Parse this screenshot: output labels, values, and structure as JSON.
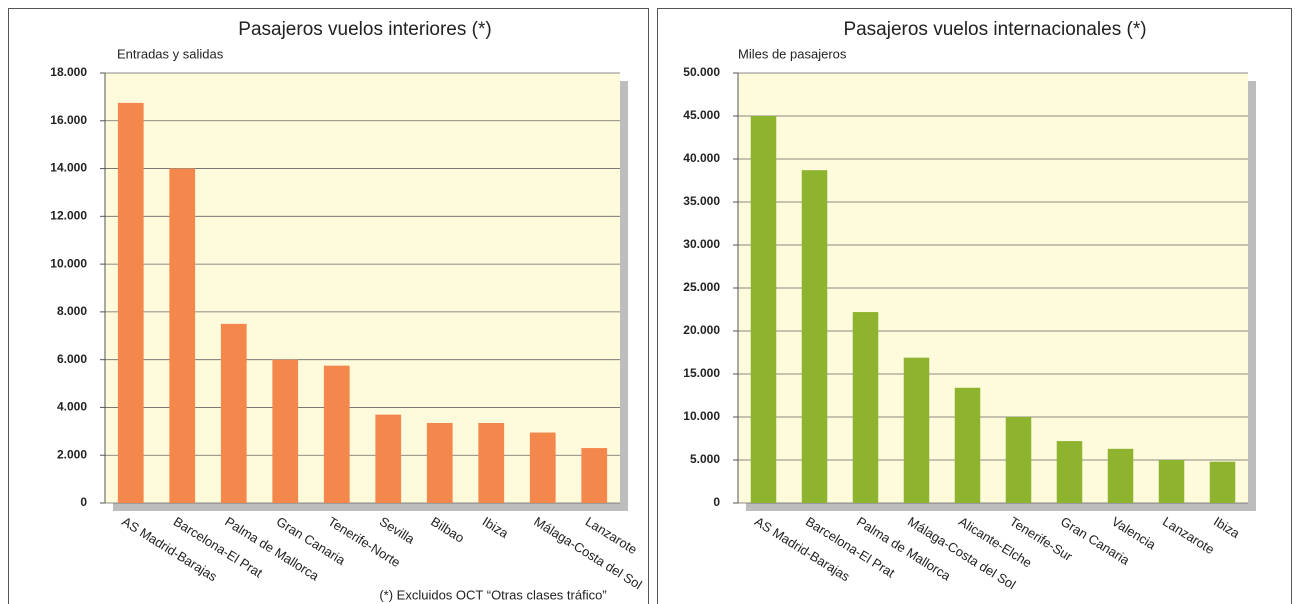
{
  "chart_data": [
    {
      "type": "bar",
      "title": "Pasajeros vuelos interiores (*)",
      "subtitle": "Entradas y salidas",
      "categories": [
        "AS Madrid-Barajas",
        "Barcelona-El Prat",
        "Palma  de Mallorca",
        "Gran Canaria",
        "Tenerife-Norte",
        "Sevilla",
        "Bilbao",
        "Ibiza",
        "Málaga-Costa del Sol",
        "Lanzarote"
      ],
      "values": [
        16750,
        14000,
        7500,
        6000,
        5750,
        3700,
        3350,
        3350,
        2950,
        2300
      ],
      "color": "#f4874b",
      "ylim": [
        0,
        18000
      ],
      "yticks": [
        0,
        {
          "value": 2000,
          "label": "2.000"
        },
        {
          "value": 4000,
          "label": "4.000"
        },
        {
          "value": 6000,
          "label": "6.000"
        },
        {
          "value": 8000,
          "label": "8.000"
        },
        {
          "value": 10000,
          "label": "10.000"
        },
        {
          "value": 12000,
          "label": "12.000"
        },
        {
          "value": 14000,
          "label": "14.000"
        },
        {
          "value": 16000,
          "label": "16.000"
        },
        {
          "value": 18000,
          "label": "18.000"
        }
      ],
      "grid": true
    },
    {
      "type": "bar",
      "title": "Pasajeros vuelos internacionales (*)",
      "subtitle": "Miles de pasajeros",
      "categories": [
        "AS Madrid-Barajas",
        "Barcelona-El Prat",
        "Palma  de Mallorca",
        "Málaga-Costa del Sol",
        "Alicante-Elche",
        "Tenerife-Sur",
        "Gran Canaria",
        "Valencia",
        "Lanzarote",
        "Ibiza"
      ],
      "values": [
        45000,
        38700,
        22200,
        16900,
        13400,
        10000,
        7200,
        6300,
        5000,
        4800
      ],
      "color": "#8db32f",
      "ylim": [
        0,
        50000
      ],
      "yticks": [
        0,
        {
          "value": 5000,
          "label": "5.000"
        },
        {
          "value": 10000,
          "label": "10.000"
        },
        {
          "value": 15000,
          "label": "15.000"
        },
        {
          "value": 20000,
          "label": "20.000"
        },
        {
          "value": 25000,
          "label": "25.000"
        },
        {
          "value": 30000,
          "label": "30.000"
        },
        {
          "value": 35000,
          "label": "35.000"
        },
        {
          "value": 40000,
          "label": "40.000"
        },
        {
          "value": 45000,
          "label": "45.000"
        },
        {
          "value": 50000,
          "label": "50.000"
        }
      ],
      "grid": true
    }
  ],
  "footnote": "(*) Excluidos OCT “Otras clases tráfico”"
}
